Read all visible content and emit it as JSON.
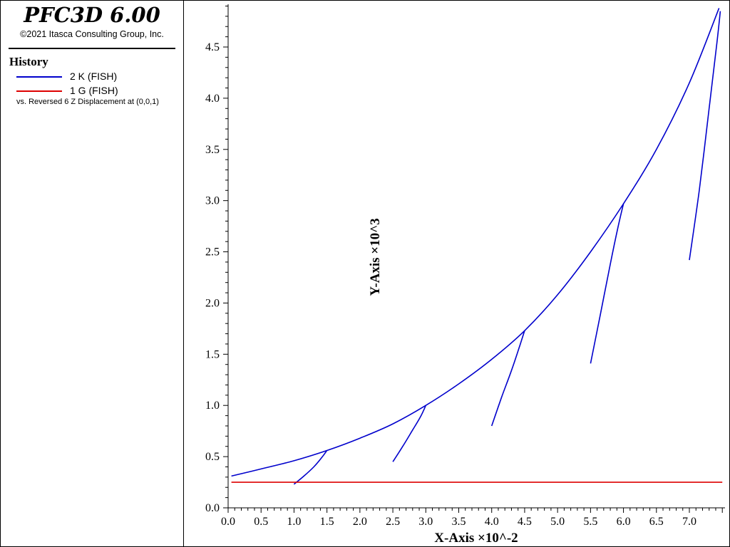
{
  "app": {
    "title": "PFC3D 6.00",
    "copyright": "©2021 Itasca Consulting Group, Inc."
  },
  "legend": {
    "heading": "History",
    "entries": [
      {
        "label": "2 K (FISH)",
        "color": "#0000cc"
      },
      {
        "label": "1 G (FISH)",
        "color": "#dd0000"
      }
    ],
    "vs_label": "vs. Reversed 6 Z Displacement at (0,0,1)"
  },
  "chart_data": {
    "type": "line",
    "xlabel": "X-Axis ×10^-2",
    "ylabel": "Y-Axis ×10^3",
    "xlim": [
      0.0,
      7.5
    ],
    "ylim": [
      0.0,
      4.9
    ],
    "x_ticks": [
      0.0,
      0.5,
      1.0,
      1.5,
      2.0,
      2.5,
      3.0,
      3.5,
      4.0,
      4.5,
      5.0,
      5.5,
      6.0,
      6.5,
      7.0
    ],
    "x_tick_labels": [
      "0.0",
      "0.5",
      "1.0",
      "1.5",
      "2.0",
      "2.5",
      "3.0",
      "3.5",
      "4.0",
      "4.5",
      "5.0",
      "5.5",
      "6.0",
      "6.5",
      "7.0"
    ],
    "y_ticks": [
      0.0,
      0.5,
      1.0,
      1.5,
      2.0,
      2.5,
      3.0,
      3.5,
      4.0,
      4.5
    ],
    "y_tick_labels": [
      "0.0",
      "0.5",
      "1.0",
      "1.5",
      "2.0",
      "2.5",
      "3.0",
      "3.5",
      "4.0",
      "4.5"
    ],
    "grid": false,
    "series": [
      {
        "name": "2 K (FISH)",
        "color": "#0000cc",
        "segments": [
          [
            [
              0.05,
              0.31
            ],
            [
              0.5,
              0.38
            ],
            [
              1.0,
              0.46
            ],
            [
              1.5,
              0.56
            ],
            [
              2.0,
              0.68
            ],
            [
              2.5,
              0.82
            ],
            [
              3.0,
              1.0
            ],
            [
              3.5,
              1.21
            ],
            [
              4.0,
              1.45
            ],
            [
              4.5,
              1.73
            ],
            [
              5.0,
              2.08
            ],
            [
              5.5,
              2.5
            ],
            [
              6.0,
              2.97
            ],
            [
              6.5,
              3.5
            ],
            [
              7.0,
              4.15
            ],
            [
              7.45,
              4.88
            ]
          ],
          [
            [
              1.0,
              0.23
            ],
            [
              1.15,
              0.31
            ],
            [
              1.3,
              0.4
            ],
            [
              1.42,
              0.49
            ],
            [
              1.5,
              0.56
            ]
          ],
          [
            [
              2.5,
              0.45
            ],
            [
              2.65,
              0.6
            ],
            [
              2.8,
              0.76
            ],
            [
              2.92,
              0.89
            ],
            [
              3.0,
              1.0
            ]
          ],
          [
            [
              4.0,
              0.8
            ],
            [
              4.15,
              1.08
            ],
            [
              4.3,
              1.34
            ],
            [
              4.42,
              1.57
            ],
            [
              4.5,
              1.73
            ]
          ],
          [
            [
              5.5,
              1.41
            ],
            [
              5.65,
              1.89
            ],
            [
              5.8,
              2.38
            ],
            [
              5.92,
              2.75
            ],
            [
              6.0,
              2.97
            ]
          ],
          [
            [
              7.0,
              2.42
            ],
            [
              7.15,
              3.1
            ],
            [
              7.3,
              3.9
            ],
            [
              7.42,
              4.55
            ],
            [
              7.47,
              4.85
            ]
          ]
        ]
      },
      {
        "name": "1 G (FISH)",
        "color": "#dd0000",
        "segments": [
          [
            [
              0.05,
              0.25
            ],
            [
              7.5,
              0.25
            ]
          ]
        ]
      }
    ]
  }
}
